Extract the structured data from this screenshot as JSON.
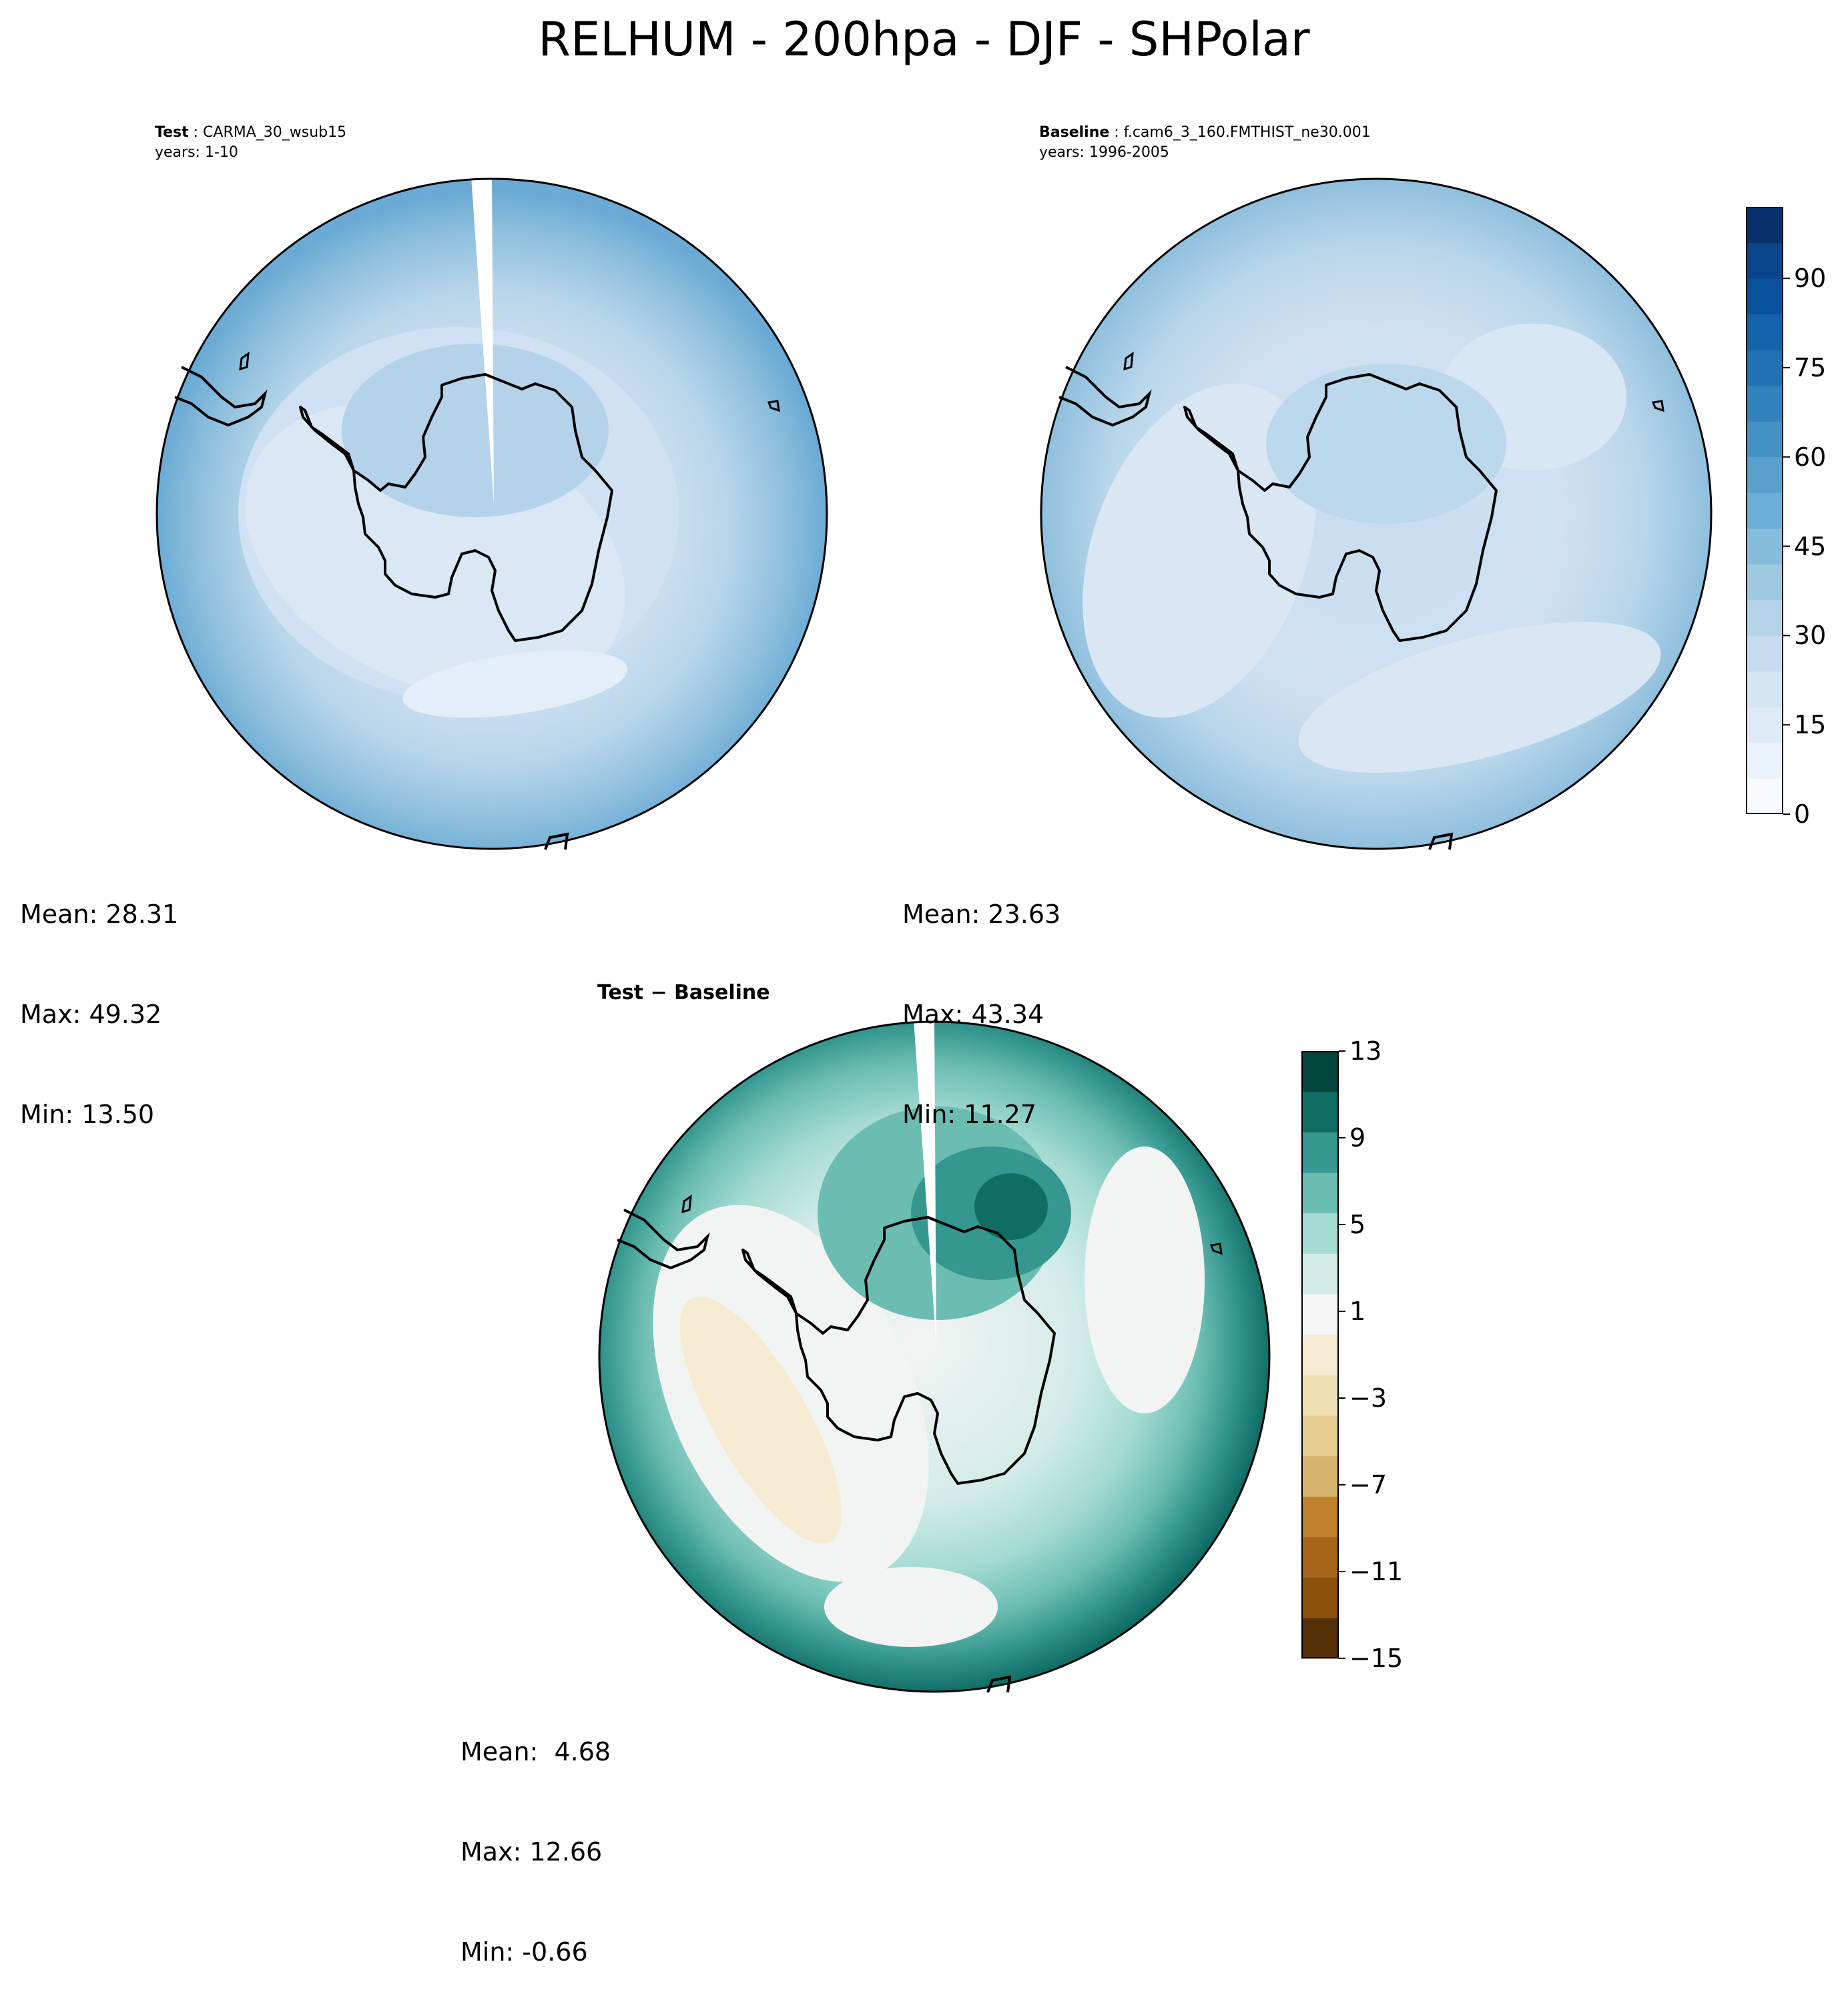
{
  "title": "RELHUM - 200hpa - DJF - SHPolar",
  "panels": {
    "test": {
      "label": "Test",
      "case": "CARMA_30_wsub15",
      "years": "years: 1-10",
      "mean": "Mean: 28.31",
      "max": "Max: 49.32",
      "min": "Min: 13.50"
    },
    "baseline": {
      "label": "Baseline",
      "case": "f.cam6_3_160.FMTHIST_ne30.001",
      "years": "years: 1996-2005",
      "mean": "Mean: 23.63",
      "max": "Max: 43.34",
      "min": "Min: 11.27"
    },
    "diff": {
      "label": "Test − Baseline",
      "mean": "Mean:  4.68",
      "max": "Max: 12.66",
      "min": "Min: -0.66"
    }
  },
  "colorbars": {
    "main": {
      "colormap": "Blues",
      "ticks": [
        "0",
        "15",
        "30",
        "45",
        "60",
        "75",
        "90"
      ],
      "colors": [
        "#f7fbff",
        "#eaf3fb",
        "#deebf7",
        "#d3e4f3",
        "#c6dbef",
        "#b5d4e9",
        "#9ecae1",
        "#86bcdc",
        "#6baed6",
        "#5aa0ce",
        "#4292c6",
        "#3282be",
        "#2171b5",
        "#1563aa",
        "#08519c",
        "#08458a",
        "#08306b"
      ]
    },
    "diff": {
      "colormap": "BrBG",
      "ticks": [
        "13",
        "9",
        "5",
        "1",
        "−3",
        "−7",
        "−11",
        "−15"
      ],
      "colors": [
        "#543005",
        "#8c510a",
        "#a6651a",
        "#bf812d",
        "#d8b56e",
        "#e5cd90",
        "#f0dfb3",
        "#f5ebd2",
        "#f5f5f5",
        "#d3ece8",
        "#a4dbd2",
        "#6bbdb1",
        "#35978f",
        "#0f6d64",
        "#01473b"
      ]
    }
  }
}
